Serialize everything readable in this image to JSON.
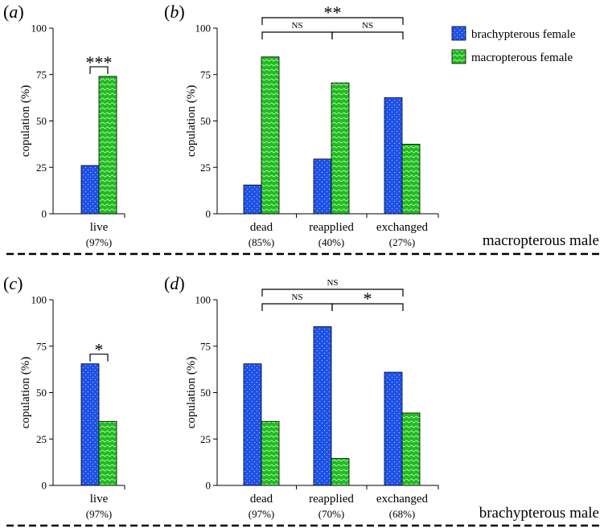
{
  "colors": {
    "brachypterous": "#1f53e6",
    "macropterous": "#22bb22"
  },
  "legend": {
    "brachypterous": "brachypterous female",
    "macropterous": "macropterous female"
  },
  "sections": {
    "top": "macropterous male",
    "bottom": "brachypterous male"
  },
  "chart_data": [
    {
      "panel": "a",
      "type": "bar",
      "ylabel": "copulation (%)",
      "ylim": [
        0,
        100
      ],
      "yticks": [
        0,
        25,
        50,
        75,
        100
      ],
      "categories": [
        "live"
      ],
      "sample_labels": [
        "(97%)"
      ],
      "series": [
        {
          "name": "brachypterous female",
          "values": [
            26
          ]
        },
        {
          "name": "macropterous female",
          "values": [
            74
          ]
        }
      ],
      "significance": [
        {
          "label": "***",
          "type": "within",
          "category": 0
        }
      ]
    },
    {
      "panel": "b",
      "type": "bar",
      "ylabel": "copulation (%)",
      "ylim": [
        0,
        100
      ],
      "yticks": [
        0,
        25,
        50,
        75,
        100
      ],
      "categories": [
        "dead",
        "reapplied",
        "exchanged"
      ],
      "sample_labels": [
        "(85%)",
        "(40%)",
        "(27%)"
      ],
      "series": [
        {
          "name": "brachypterous female",
          "values": [
            15.5,
            29.5,
            62.5
          ]
        },
        {
          "name": "macropterous female",
          "values": [
            84.5,
            70.5,
            37.5
          ]
        }
      ],
      "significance": [
        {
          "label": "NS",
          "type": "between",
          "from": 0,
          "to": 1,
          "level": 1
        },
        {
          "label": "NS",
          "type": "between",
          "from": 1,
          "to": 2,
          "level": 1
        },
        {
          "label": "**",
          "type": "between",
          "from": 0,
          "to": 2,
          "level": 2
        }
      ]
    },
    {
      "panel": "c",
      "type": "bar",
      "ylabel": "copulation (%)",
      "ylim": [
        0,
        100
      ],
      "yticks": [
        0,
        25,
        50,
        75,
        100
      ],
      "categories": [
        "live"
      ],
      "sample_labels": [
        "(97%)"
      ],
      "series": [
        {
          "name": "brachypterous female",
          "values": [
            65.5
          ]
        },
        {
          "name": "macropterous female",
          "values": [
            34.5
          ]
        }
      ],
      "significance": [
        {
          "label": "*",
          "type": "within",
          "category": 0
        }
      ]
    },
    {
      "panel": "d",
      "type": "bar",
      "ylabel": "copulation (%)",
      "ylim": [
        0,
        100
      ],
      "yticks": [
        0,
        25,
        50,
        75,
        100
      ],
      "categories": [
        "dead",
        "reapplied",
        "exchanged"
      ],
      "sample_labels": [
        "(97%)",
        "(70%)",
        "(68%)"
      ],
      "series": [
        {
          "name": "brachypterous female",
          "values": [
            65.5,
            85.5,
            61
          ]
        },
        {
          "name": "macropterous female",
          "values": [
            34.5,
            14.5,
            39
          ]
        }
      ],
      "significance": [
        {
          "label": "NS",
          "type": "between",
          "from": 0,
          "to": 1,
          "level": 1
        },
        {
          "label": "*",
          "type": "between",
          "from": 1,
          "to": 2,
          "level": 1
        },
        {
          "label": "NS",
          "type": "between",
          "from": 0,
          "to": 2,
          "level": 2
        }
      ]
    }
  ]
}
